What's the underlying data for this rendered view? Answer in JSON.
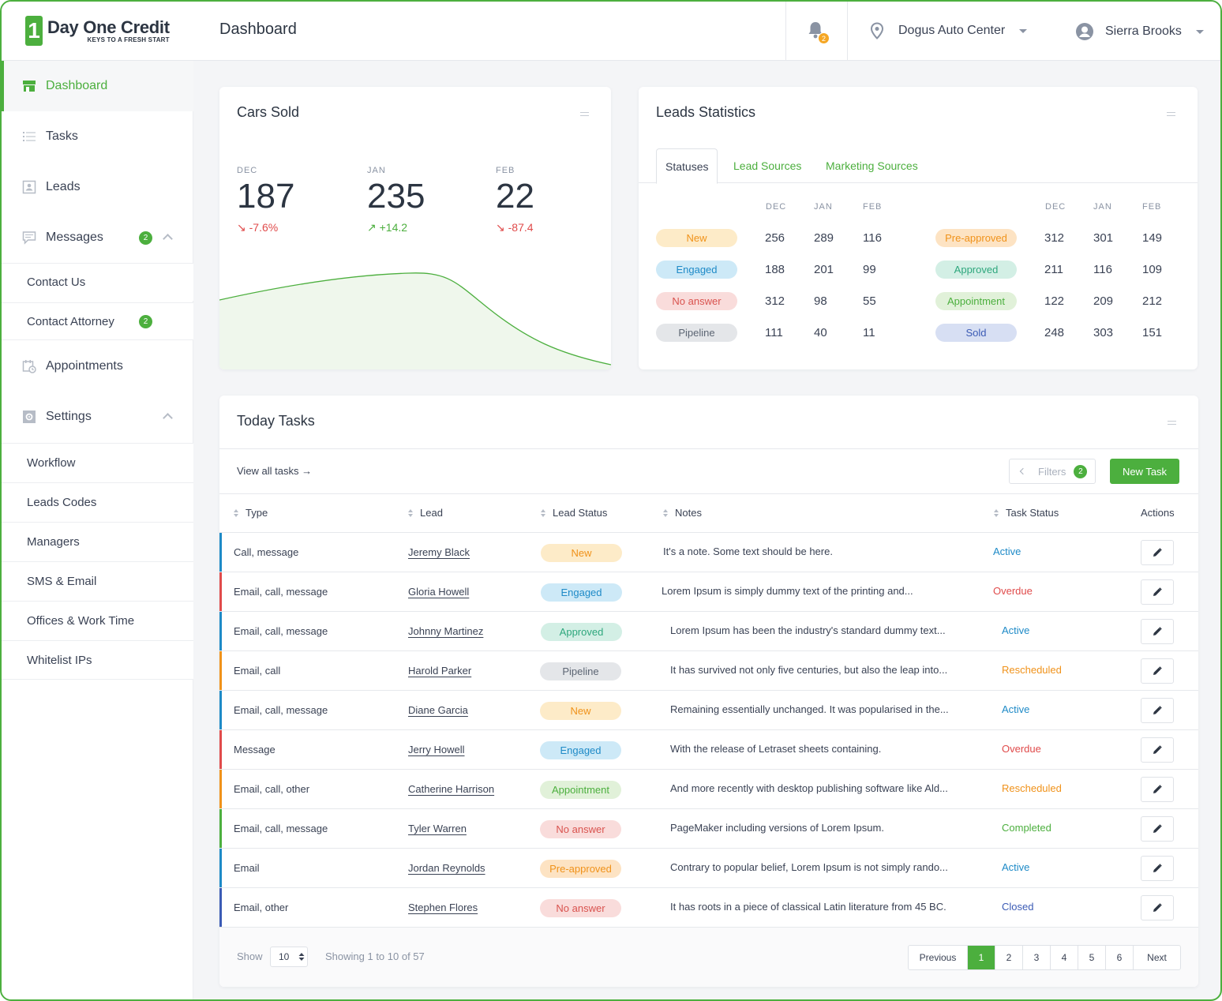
{
  "brand": {
    "mark": "1",
    "name_a": "Day One",
    "name_b": "Credit",
    "tagline": "KEYS TO A FRESH START",
    "accent": "#4caf3e"
  },
  "header": {
    "title": "Dashboard",
    "notifications_count": "2",
    "location": "Dogus Auto Center",
    "user": "Sierra Brooks"
  },
  "sidebar": {
    "items": [
      {
        "label": "Dashboard",
        "icon": "store-icon",
        "active": true
      },
      {
        "label": "Tasks",
        "icon": "list-icon"
      },
      {
        "label": "Leads",
        "icon": "contact-card-icon"
      },
      {
        "label": "Messages",
        "icon": "message-icon",
        "badge": "2"
      },
      {
        "label": "Appointments",
        "icon": "calendar-clock-icon"
      },
      {
        "label": "Settings",
        "icon": "gear-box-icon"
      }
    ],
    "messages_sub": [
      {
        "label": "Contact Us"
      },
      {
        "label": "Contact Attorney",
        "badge": "2"
      }
    ],
    "settings_sub": [
      {
        "label": "Workflow"
      },
      {
        "label": "Leads Codes"
      },
      {
        "label": "Managers"
      },
      {
        "label": "SMS & Email"
      },
      {
        "label": "Offices & Work Time"
      },
      {
        "label": "Whitelist IPs"
      }
    ]
  },
  "cars_sold": {
    "title": "Cars Sold",
    "stats": [
      {
        "month": "DEC",
        "value": "187",
        "delta": "-7.6%",
        "dir": "down"
      },
      {
        "month": "JAN",
        "value": "235",
        "delta": "+14.2",
        "dir": "up"
      },
      {
        "month": "FEB",
        "value": "22",
        "delta": "-87.4",
        "dir": "down"
      }
    ]
  },
  "leads_statistics": {
    "title": "Leads Statistics",
    "tabs": [
      "Statuses",
      "Lead Sources",
      "Marketing Sources"
    ],
    "months": [
      "DEC",
      "JAN",
      "FEB"
    ],
    "left": [
      {
        "status": "New",
        "values": [
          "256",
          "289",
          "116"
        ]
      },
      {
        "status": "Engaged",
        "values": [
          "188",
          "201",
          "99"
        ]
      },
      {
        "status": "No answer",
        "values": [
          "312",
          "98",
          "55"
        ]
      },
      {
        "status": "Pipeline",
        "values": [
          "111",
          "40",
          "11"
        ]
      }
    ],
    "right": [
      {
        "status": "Pre-approved",
        "values": [
          "312",
          "301",
          "149"
        ]
      },
      {
        "status": "Approved",
        "values": [
          "211",
          "116",
          "109"
        ]
      },
      {
        "status": "Appointment",
        "values": [
          "122",
          "209",
          "212"
        ]
      },
      {
        "status": "Sold",
        "values": [
          "248",
          "303",
          "151"
        ]
      }
    ]
  },
  "status_colors": {
    "New": {
      "bg": "#fdebc8",
      "fg": "#f0921a"
    },
    "Engaged": {
      "bg": "#cde9f7",
      "fg": "#1e8ac7"
    },
    "No answer": {
      "bg": "#f9dcdb",
      "fg": "#d9534f"
    },
    "Pipeline": {
      "bg": "#e4e6e9",
      "fg": "#5c6573"
    },
    "Pre-approved": {
      "bg": "#fde3c3",
      "fg": "#f0921a"
    },
    "Approved": {
      "bg": "#d3efe5",
      "fg": "#2ea77d"
    },
    "Appointment": {
      "bg": "#e1f1d9",
      "fg": "#4caf3e"
    },
    "Sold": {
      "bg": "#d7dff3",
      "fg": "#3b5bb5"
    }
  },
  "task_status_colors": {
    "Active": "#1e8ac7",
    "Overdue": "#e04b4b",
    "Rescheduled": "#f0921a",
    "Completed": "#4caf3e",
    "Closed": "#3b5bb5"
  },
  "today_tasks": {
    "title": "Today Tasks",
    "view_all": "View all tasks →",
    "filters_label": "Filters",
    "filters_count": "2",
    "new_task": "New Task",
    "columns": [
      "Type",
      "Lead",
      "Lead Status",
      "Notes",
      "Task Status",
      "Actions"
    ],
    "rows": [
      {
        "type": "Call, message",
        "lead": "Jeremy Black",
        "lead_status": "New",
        "notes": "It's a note. Some text should be here.",
        "task_status": "Active",
        "stripe": "#1e8ac7"
      },
      {
        "type": "Email, call, message",
        "lead": "Gloria Howell",
        "lead_status": "Engaged",
        "notes": "Lorem Ipsum is simply dummy text of the printing and...",
        "task_status": "Overdue",
        "stripe": "#e04b4b"
      },
      {
        "type": "Email, call, message",
        "lead": "Johnny Martinez",
        "lead_status": "Approved",
        "notes": "Lorem Ipsum has been the industry's standard dummy text...",
        "task_status": "Active",
        "stripe": "#1e8ac7"
      },
      {
        "type": "Email, call",
        "lead": "Harold Parker",
        "lead_status": "Pipeline",
        "notes": "It has survived not only five centuries, but also the leap into...",
        "task_status": "Rescheduled",
        "stripe": "#f0921a"
      },
      {
        "type": "Email, call, message",
        "lead": "Diane Garcia",
        "lead_status": "New",
        "notes": "Remaining essentially unchanged. It was  popularised in the...",
        "task_status": "Active",
        "stripe": "#1e8ac7"
      },
      {
        "type": "Message",
        "lead": "Jerry Howell",
        "lead_status": "Engaged",
        "notes": "With the release of Letraset sheets containing.",
        "task_status": "Overdue",
        "stripe": "#e04b4b"
      },
      {
        "type": "Email, call, other",
        "lead": "Catherine Harrison",
        "lead_status": "Appointment",
        "notes": "And more recently with desktop publishing software like Ald...",
        "task_status": "Rescheduled",
        "stripe": "#f0921a"
      },
      {
        "type": "Email, call, message",
        "lead": "Tyler Warren",
        "lead_status": "No answer",
        "notes": "PageMaker including versions of Lorem Ipsum.",
        "task_status": "Completed",
        "stripe": "#4caf3e"
      },
      {
        "type": "Email",
        "lead": "Jordan Reynolds",
        "lead_status": "Pre-approved",
        "notes": "Contrary to popular belief, Lorem Ipsum is not simply rando...",
        "task_status": "Active",
        "stripe": "#1e8ac7"
      },
      {
        "type": "Email, other",
        "lead": "Stephen Flores",
        "lead_status": "No answer",
        "notes": "It has roots in a piece of classical Latin literature from 45 BC.",
        "task_status": "Closed",
        "stripe": "#3b5bb5"
      }
    ],
    "footer": {
      "show_label": "Show",
      "page_size": "10",
      "info": "Showing 1 to 10 of 57",
      "prev": "Previous",
      "pages": [
        "1",
        "2",
        "3",
        "4",
        "5",
        "6"
      ],
      "current_page": "1",
      "next": "Next"
    }
  }
}
